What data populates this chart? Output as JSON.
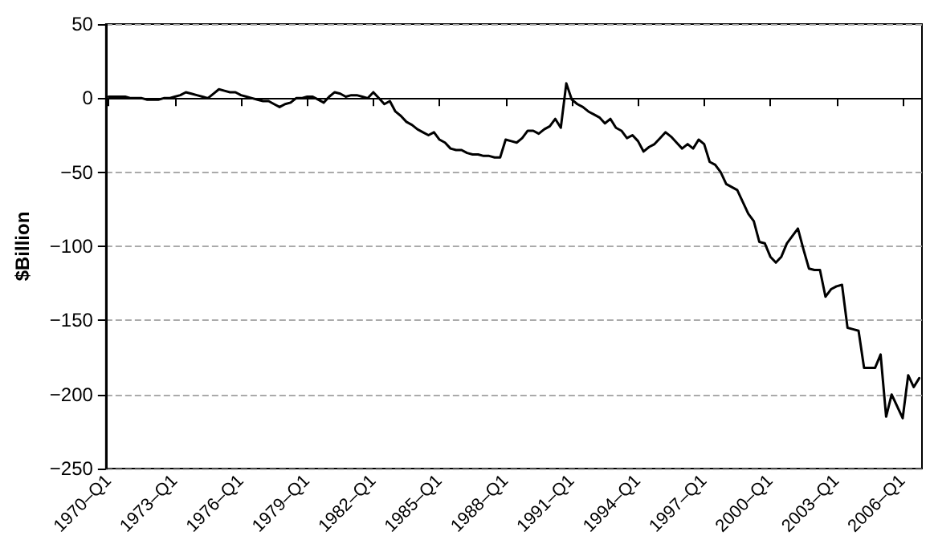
{
  "chart_data": {
    "type": "line",
    "ylabel": "$Billion",
    "ylim": [
      -250,
      50
    ],
    "categories": [
      "1970–Q1",
      null,
      null,
      null,
      null,
      null,
      null,
      null,
      null,
      null,
      null,
      null,
      "1973–Q1",
      null,
      null,
      null,
      null,
      null,
      null,
      null,
      null,
      null,
      null,
      null,
      "1976–Q1",
      null,
      null,
      null,
      null,
      null,
      null,
      null,
      null,
      null,
      null,
      null,
      "1979–Q1",
      null,
      null,
      null,
      null,
      null,
      null,
      null,
      null,
      null,
      null,
      null,
      "1982–Q1",
      null,
      null,
      null,
      null,
      null,
      null,
      null,
      null,
      null,
      null,
      null,
      "1985–Q1",
      null,
      null,
      null,
      null,
      null,
      null,
      null,
      null,
      null,
      null,
      null,
      "1988–Q1",
      null,
      null,
      null,
      null,
      null,
      null,
      null,
      null,
      null,
      null,
      null,
      "1991–Q1",
      null,
      null,
      null,
      null,
      null,
      null,
      null,
      null,
      null,
      null,
      null,
      "1994–Q1",
      null,
      null,
      null,
      null,
      null,
      null,
      null,
      null,
      null,
      null,
      null,
      "1997–Q1",
      null,
      null,
      null,
      null,
      null,
      null,
      null,
      null,
      null,
      null,
      null,
      "2000–Q1",
      null,
      null,
      null,
      null,
      null,
      null,
      null,
      null,
      null,
      null,
      null,
      "2003–Q1",
      null,
      null,
      null,
      null,
      null,
      null,
      null,
      null,
      null,
      null,
      null,
      "2006–Q1",
      null,
      null,
      null
    ],
    "yticks": [
      -250,
      -200,
      -150,
      -100,
      -50,
      0,
      50
    ],
    "grid": "y",
    "marker": "none",
    "line_style": "solid",
    "series": [
      {
        "color": "#000000",
        "values": [
          1,
          1,
          1,
          1,
          0,
          0,
          0,
          -1,
          -1,
          -1,
          0,
          0,
          1,
          2,
          4,
          3,
          2,
          1,
          0,
          3,
          6,
          5,
          4,
          4,
          2,
          1,
          0,
          -1,
          -2,
          -2,
          -4,
          -6,
          -4,
          -3,
          0,
          0,
          1,
          1,
          -1,
          -3,
          1,
          4,
          3,
          1,
          2,
          2,
          1,
          0,
          4,
          0,
          -4,
          -2,
          -9,
          -12,
          -16,
          -18,
          -21,
          -23,
          -25,
          -23,
          -28,
          -30,
          -34,
          -35,
          -35,
          -37,
          -38,
          -38,
          -39,
          -39,
          -40,
          -40,
          -28,
          -29,
          -30,
          -27,
          -22,
          -22,
          -24,
          -21,
          -19,
          -14,
          -20,
          10,
          -1,
          -4,
          -6,
          -9,
          -11,
          -13,
          -17,
          -14,
          -20,
          -22,
          -27,
          -25,
          -29,
          -36,
          -33,
          -31,
          -27,
          -23,
          -26,
          -30,
          -34,
          -31,
          -34,
          -28,
          -31,
          -43,
          -45,
          -50,
          -58,
          -60,
          -62,
          -70,
          -78,
          -83,
          -97,
          -98,
          -107,
          -111,
          -107,
          -98,
          -93,
          -88,
          -102,
          -115,
          -116,
          -116,
          -134,
          -129,
          -127,
          -126,
          -155,
          -156,
          -157,
          -182,
          -182,
          -182,
          -173,
          -215,
          -200,
          -208,
          -216,
          -187,
          -195,
          -189
        ]
      }
    ]
  }
}
